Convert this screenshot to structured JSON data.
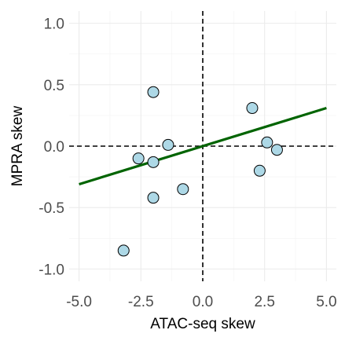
{
  "chart_data": {
    "type": "scatter",
    "title": "",
    "xlabel": "ATAC-seq skew",
    "ylabel": "MPRA skew",
    "xlim": [
      -5.4,
      5.4
    ],
    "ylim": [
      -1.1,
      1.1
    ],
    "x_ticks": [
      -5.0,
      -2.5,
      0.0,
      2.5,
      5.0
    ],
    "x_tick_labels": [
      "-5.0",
      "-2.5",
      "0.0",
      "2.5",
      "5.0"
    ],
    "y_ticks": [
      1.0,
      0.5,
      0.0,
      -0.5,
      -1.0
    ],
    "y_tick_labels": [
      "1.0",
      "0.5",
      "0.0",
      "-0.5",
      "-1.0"
    ],
    "grid": true,
    "reference_lines": {
      "x": 0.0,
      "y": 0.0,
      "style": "dashed"
    },
    "points": [
      {
        "x": -2.0,
        "y": 0.44
      },
      {
        "x": -1.4,
        "y": 0.01
      },
      {
        "x": -2.6,
        "y": -0.1
      },
      {
        "x": -2.0,
        "y": -0.13
      },
      {
        "x": -0.8,
        "y": -0.35
      },
      {
        "x": -2.0,
        "y": -0.42
      },
      {
        "x": -3.2,
        "y": -0.85
      },
      {
        "x": 2.0,
        "y": 0.31
      },
      {
        "x": 2.6,
        "y": 0.03
      },
      {
        "x": 3.0,
        "y": -0.03
      },
      {
        "x": 2.3,
        "y": -0.2
      }
    ],
    "fit_line": {
      "x": [
        -5.0,
        5.0
      ],
      "y": [
        -0.31,
        0.31
      ]
    },
    "colors": {
      "point_fill": "#add8e6",
      "fit": "#006400",
      "reference": "#000000"
    }
  }
}
